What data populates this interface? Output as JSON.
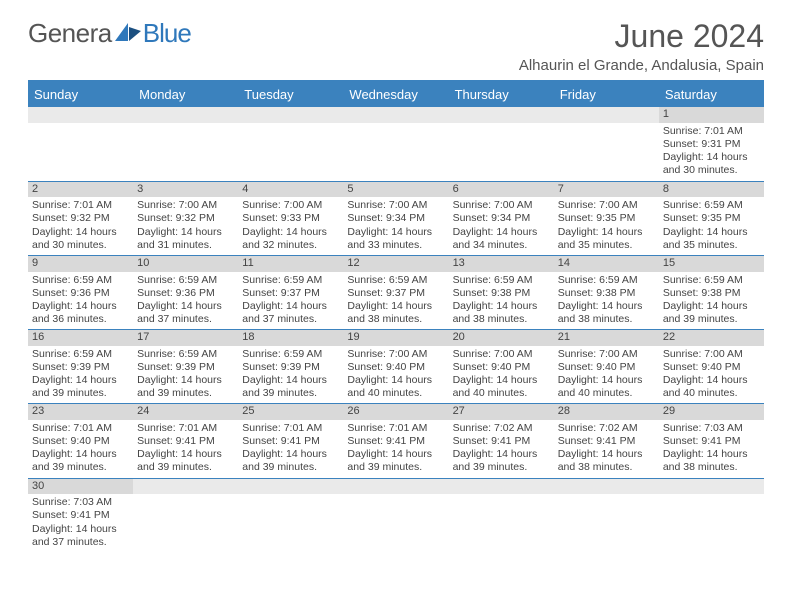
{
  "logo": {
    "text1": "Genera",
    "text2": "Blue"
  },
  "colors": {
    "accent": "#3b82be",
    "header_bg": "#3b82be",
    "daynum_bg": "#d9d9d9",
    "rule": "#3b82be"
  },
  "title": "June 2024",
  "location": "Alhaurin el Grande, Andalusia, Spain",
  "day_headers": [
    "Sunday",
    "Monday",
    "Tuesday",
    "Wednesday",
    "Thursday",
    "Friday",
    "Saturday"
  ],
  "weeks": [
    [
      null,
      null,
      null,
      null,
      null,
      null,
      {
        "n": "1",
        "sr": "Sunrise: 7:01 AM",
        "ss": "Sunset: 9:31 PM",
        "d1": "Daylight: 14 hours",
        "d2": "and 30 minutes."
      }
    ],
    [
      {
        "n": "2",
        "sr": "Sunrise: 7:01 AM",
        "ss": "Sunset: 9:32 PM",
        "d1": "Daylight: 14 hours",
        "d2": "and 30 minutes."
      },
      {
        "n": "3",
        "sr": "Sunrise: 7:00 AM",
        "ss": "Sunset: 9:32 PM",
        "d1": "Daylight: 14 hours",
        "d2": "and 31 minutes."
      },
      {
        "n": "4",
        "sr": "Sunrise: 7:00 AM",
        "ss": "Sunset: 9:33 PM",
        "d1": "Daylight: 14 hours",
        "d2": "and 32 minutes."
      },
      {
        "n": "5",
        "sr": "Sunrise: 7:00 AM",
        "ss": "Sunset: 9:34 PM",
        "d1": "Daylight: 14 hours",
        "d2": "and 33 minutes."
      },
      {
        "n": "6",
        "sr": "Sunrise: 7:00 AM",
        "ss": "Sunset: 9:34 PM",
        "d1": "Daylight: 14 hours",
        "d2": "and 34 minutes."
      },
      {
        "n": "7",
        "sr": "Sunrise: 7:00 AM",
        "ss": "Sunset: 9:35 PM",
        "d1": "Daylight: 14 hours",
        "d2": "and 35 minutes."
      },
      {
        "n": "8",
        "sr": "Sunrise: 6:59 AM",
        "ss": "Sunset: 9:35 PM",
        "d1": "Daylight: 14 hours",
        "d2": "and 35 minutes."
      }
    ],
    [
      {
        "n": "9",
        "sr": "Sunrise: 6:59 AM",
        "ss": "Sunset: 9:36 PM",
        "d1": "Daylight: 14 hours",
        "d2": "and 36 minutes."
      },
      {
        "n": "10",
        "sr": "Sunrise: 6:59 AM",
        "ss": "Sunset: 9:36 PM",
        "d1": "Daylight: 14 hours",
        "d2": "and 37 minutes."
      },
      {
        "n": "11",
        "sr": "Sunrise: 6:59 AM",
        "ss": "Sunset: 9:37 PM",
        "d1": "Daylight: 14 hours",
        "d2": "and 37 minutes."
      },
      {
        "n": "12",
        "sr": "Sunrise: 6:59 AM",
        "ss": "Sunset: 9:37 PM",
        "d1": "Daylight: 14 hours",
        "d2": "and 38 minutes."
      },
      {
        "n": "13",
        "sr": "Sunrise: 6:59 AM",
        "ss": "Sunset: 9:38 PM",
        "d1": "Daylight: 14 hours",
        "d2": "and 38 minutes."
      },
      {
        "n": "14",
        "sr": "Sunrise: 6:59 AM",
        "ss": "Sunset: 9:38 PM",
        "d1": "Daylight: 14 hours",
        "d2": "and 38 minutes."
      },
      {
        "n": "15",
        "sr": "Sunrise: 6:59 AM",
        "ss": "Sunset: 9:38 PM",
        "d1": "Daylight: 14 hours",
        "d2": "and 39 minutes."
      }
    ],
    [
      {
        "n": "16",
        "sr": "Sunrise: 6:59 AM",
        "ss": "Sunset: 9:39 PM",
        "d1": "Daylight: 14 hours",
        "d2": "and 39 minutes."
      },
      {
        "n": "17",
        "sr": "Sunrise: 6:59 AM",
        "ss": "Sunset: 9:39 PM",
        "d1": "Daylight: 14 hours",
        "d2": "and 39 minutes."
      },
      {
        "n": "18",
        "sr": "Sunrise: 6:59 AM",
        "ss": "Sunset: 9:39 PM",
        "d1": "Daylight: 14 hours",
        "d2": "and 39 minutes."
      },
      {
        "n": "19",
        "sr": "Sunrise: 7:00 AM",
        "ss": "Sunset: 9:40 PM",
        "d1": "Daylight: 14 hours",
        "d2": "and 40 minutes."
      },
      {
        "n": "20",
        "sr": "Sunrise: 7:00 AM",
        "ss": "Sunset: 9:40 PM",
        "d1": "Daylight: 14 hours",
        "d2": "and 40 minutes."
      },
      {
        "n": "21",
        "sr": "Sunrise: 7:00 AM",
        "ss": "Sunset: 9:40 PM",
        "d1": "Daylight: 14 hours",
        "d2": "and 40 minutes."
      },
      {
        "n": "22",
        "sr": "Sunrise: 7:00 AM",
        "ss": "Sunset: 9:40 PM",
        "d1": "Daylight: 14 hours",
        "d2": "and 40 minutes."
      }
    ],
    [
      {
        "n": "23",
        "sr": "Sunrise: 7:01 AM",
        "ss": "Sunset: 9:40 PM",
        "d1": "Daylight: 14 hours",
        "d2": "and 39 minutes."
      },
      {
        "n": "24",
        "sr": "Sunrise: 7:01 AM",
        "ss": "Sunset: 9:41 PM",
        "d1": "Daylight: 14 hours",
        "d2": "and 39 minutes."
      },
      {
        "n": "25",
        "sr": "Sunrise: 7:01 AM",
        "ss": "Sunset: 9:41 PM",
        "d1": "Daylight: 14 hours",
        "d2": "and 39 minutes."
      },
      {
        "n": "26",
        "sr": "Sunrise: 7:01 AM",
        "ss": "Sunset: 9:41 PM",
        "d1": "Daylight: 14 hours",
        "d2": "and 39 minutes."
      },
      {
        "n": "27",
        "sr": "Sunrise: 7:02 AM",
        "ss": "Sunset: 9:41 PM",
        "d1": "Daylight: 14 hours",
        "d2": "and 39 minutes."
      },
      {
        "n": "28",
        "sr": "Sunrise: 7:02 AM",
        "ss": "Sunset: 9:41 PM",
        "d1": "Daylight: 14 hours",
        "d2": "and 38 minutes."
      },
      {
        "n": "29",
        "sr": "Sunrise: 7:03 AM",
        "ss": "Sunset: 9:41 PM",
        "d1": "Daylight: 14 hours",
        "d2": "and 38 minutes."
      }
    ],
    [
      {
        "n": "30",
        "sr": "Sunrise: 7:03 AM",
        "ss": "Sunset: 9:41 PM",
        "d1": "Daylight: 14 hours",
        "d2": "and 37 minutes."
      },
      null,
      null,
      null,
      null,
      null,
      null
    ]
  ]
}
